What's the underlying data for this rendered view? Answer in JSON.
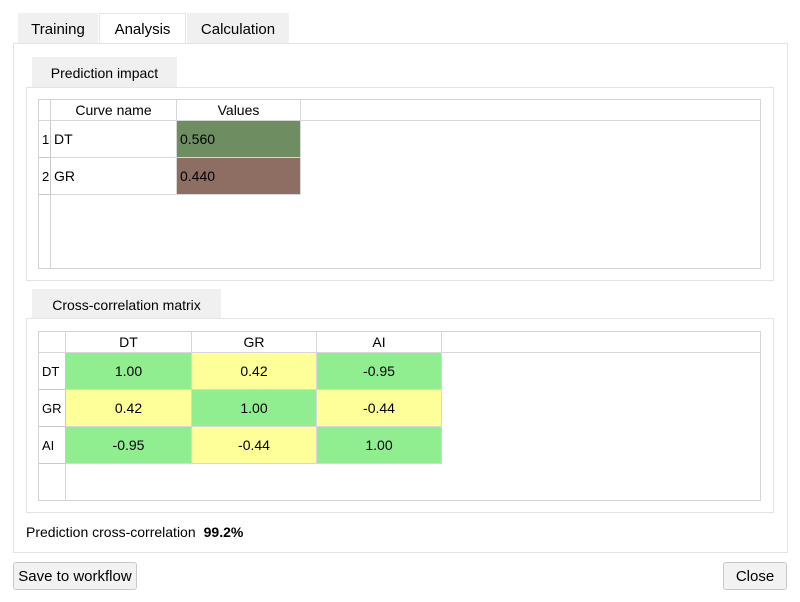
{
  "tabs": [
    {
      "label": "Training"
    },
    {
      "label": "Analysis"
    },
    {
      "label": "Calculation"
    }
  ],
  "prediction_impact": {
    "title": "Prediction impact",
    "columns": [
      "Curve name",
      "Values"
    ],
    "rows": [
      {
        "index": "1",
        "name": "DT",
        "value": "0.560",
        "color": "#6e8e62"
      },
      {
        "index": "2",
        "name": "GR",
        "value": "0.440",
        "color": "#8e6e62"
      }
    ]
  },
  "cross_correlation": {
    "title": "Cross-correlation matrix",
    "columns": [
      "DT",
      "GR",
      "AI"
    ],
    "rows": [
      {
        "label": "DT",
        "values": [
          "1.00",
          "0.42",
          "-0.95"
        ]
      },
      {
        "label": "GR",
        "values": [
          "0.42",
          "1.00",
          "-0.44"
        ]
      },
      {
        "label": "AI",
        "values": [
          "-0.95",
          "-0.44",
          "1.00"
        ]
      }
    ],
    "colors": {
      "high": "#90ee90",
      "mid": "#ffff99"
    }
  },
  "summary": {
    "label": "Prediction cross-correlation",
    "value": "99.2%"
  },
  "buttons": {
    "save": "Save to workflow",
    "close": "Close"
  }
}
